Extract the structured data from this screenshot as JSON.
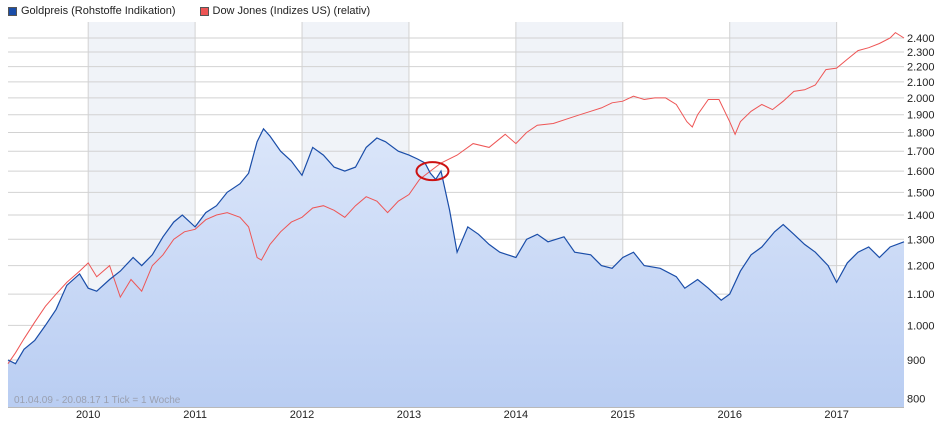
{
  "legend": {
    "series1_label": "Goldpreis (Rohstoffe Indikation)",
    "series2_label": "Dow Jones (Indizes US) (relativ)"
  },
  "footnote": "01.04.09 - 20.08.17   1 Tick = 1 Woche",
  "colors": {
    "gold": "#1a4da8",
    "gold_fill_top": "#b9cdf2",
    "gold_fill_bottom": "#dbe6fa",
    "dow": "#ee5555",
    "highlight": "#cc1111",
    "grid": "#d2d2d2",
    "band": "#f0f3f8"
  },
  "chart_data": {
    "type": "line",
    "title": "",
    "xlabel": "",
    "ylabel": "",
    "yscale": "log",
    "ylim": [
      780,
      2520
    ],
    "xlim": [
      2009.25,
      2017.63
    ],
    "y_ticks": [
      800,
      900,
      1000,
      1100,
      1200,
      1300,
      1400,
      1500,
      1600,
      1700,
      1800,
      1900,
      2000,
      2100,
      2200,
      2300,
      2400
    ],
    "y_tick_labels": [
      "800",
      "900",
      "1.000",
      "1.100",
      "1.200",
      "1.300",
      "1.400",
      "1.500",
      "1.600",
      "1.700",
      "1.800",
      "1.900",
      "2.000",
      "2.100",
      "2.200",
      "2.300",
      "2.400"
    ],
    "x_ticks": [
      2010,
      2011,
      2012,
      2013,
      2014,
      2015,
      2016,
      2017
    ],
    "x_tick_labels": [
      "2010",
      "2011",
      "2012",
      "2013",
      "2014",
      "2015",
      "2016",
      "2017"
    ],
    "grid": true,
    "legend_position": "top-left",
    "annotation": {
      "type": "ellipse",
      "x": 2013.22,
      "y": 1600
    },
    "series": [
      {
        "name": "Goldpreis (Rohstoffe Indikation)",
        "x": [
          2009.25,
          2009.32,
          2009.4,
          2009.5,
          2009.6,
          2009.7,
          2009.8,
          2009.92,
          2010.0,
          2010.08,
          2010.2,
          2010.3,
          2010.42,
          2010.5,
          2010.6,
          2010.7,
          2010.8,
          2010.88,
          2011.0,
          2011.1,
          2011.2,
          2011.3,
          2011.42,
          2011.5,
          2011.58,
          2011.64,
          2011.7,
          2011.8,
          2011.9,
          2012.0,
          2012.1,
          2012.2,
          2012.3,
          2012.4,
          2012.5,
          2012.6,
          2012.7,
          2012.78,
          2012.9,
          2013.0,
          2013.08,
          2013.15,
          2013.2,
          2013.25,
          2013.3,
          2013.38,
          2013.45,
          2013.55,
          2013.65,
          2013.75,
          2013.85,
          2014.0,
          2014.1,
          2014.2,
          2014.3,
          2014.45,
          2014.55,
          2014.7,
          2014.8,
          2014.9,
          2015.0,
          2015.1,
          2015.2,
          2015.35,
          2015.5,
          2015.58,
          2015.7,
          2015.8,
          2015.92,
          2016.0,
          2016.1,
          2016.2,
          2016.3,
          2016.42,
          2016.5,
          2016.6,
          2016.7,
          2016.8,
          2016.92,
          2017.0,
          2017.1,
          2017.2,
          2017.3,
          2017.4,
          2017.5,
          2017.63
        ],
        "y": [
          900,
          890,
          930,
          955,
          1000,
          1050,
          1130,
          1170,
          1120,
          1110,
          1150,
          1180,
          1230,
          1200,
          1240,
          1310,
          1370,
          1400,
          1350,
          1410,
          1440,
          1500,
          1540,
          1590,
          1750,
          1820,
          1780,
          1700,
          1650,
          1580,
          1720,
          1680,
          1620,
          1600,
          1620,
          1720,
          1770,
          1750,
          1700,
          1680,
          1660,
          1640,
          1590,
          1560,
          1600,
          1420,
          1250,
          1350,
          1320,
          1280,
          1250,
          1230,
          1300,
          1320,
          1290,
          1310,
          1250,
          1240,
          1200,
          1190,
          1230,
          1250,
          1200,
          1190,
          1160,
          1120,
          1150,
          1120,
          1080,
          1100,
          1180,
          1240,
          1270,
          1330,
          1360,
          1320,
          1280,
          1250,
          1200,
          1140,
          1210,
          1250,
          1270,
          1230,
          1270,
          1290
        ]
      },
      {
        "name": "Dow Jones (Indizes US) (relativ)",
        "x": [
          2009.25,
          2009.32,
          2009.4,
          2009.5,
          2009.6,
          2009.7,
          2009.8,
          2009.92,
          2010.0,
          2010.08,
          2010.2,
          2010.3,
          2010.4,
          2010.5,
          2010.6,
          2010.7,
          2010.8,
          2010.9,
          2011.0,
          2011.1,
          2011.2,
          2011.3,
          2011.42,
          2011.5,
          2011.58,
          2011.62,
          2011.7,
          2011.8,
          2011.9,
          2012.0,
          2012.1,
          2012.2,
          2012.3,
          2012.4,
          2012.5,
          2012.6,
          2012.7,
          2012.8,
          2012.9,
          2013.0,
          2013.1,
          2013.2,
          2013.3,
          2013.45,
          2013.6,
          2013.75,
          2013.9,
          2014.0,
          2014.1,
          2014.2,
          2014.35,
          2014.5,
          2014.6,
          2014.7,
          2014.8,
          2014.9,
          2015.0,
          2015.1,
          2015.2,
          2015.3,
          2015.4,
          2015.5,
          2015.6,
          2015.65,
          2015.7,
          2015.8,
          2015.9,
          2016.0,
          2016.05,
          2016.1,
          2016.2,
          2016.3,
          2016.4,
          2016.5,
          2016.6,
          2016.7,
          2016.8,
          2016.9,
          2017.0,
          2017.1,
          2017.2,
          2017.3,
          2017.4,
          2017.5,
          2017.55,
          2017.63
        ],
        "y": [
          890,
          920,
          960,
          1010,
          1060,
          1100,
          1140,
          1180,
          1210,
          1160,
          1200,
          1090,
          1150,
          1110,
          1200,
          1240,
          1300,
          1330,
          1340,
          1380,
          1400,
          1410,
          1390,
          1350,
          1230,
          1220,
          1280,
          1330,
          1370,
          1390,
          1430,
          1440,
          1420,
          1390,
          1440,
          1480,
          1460,
          1410,
          1460,
          1490,
          1560,
          1600,
          1640,
          1680,
          1740,
          1720,
          1790,
          1740,
          1800,
          1840,
          1850,
          1880,
          1900,
          1920,
          1940,
          1970,
          1980,
          2010,
          1990,
          2000,
          2000,
          1960,
          1860,
          1830,
          1900,
          1990,
          1990,
          1860,
          1790,
          1860,
          1920,
          1960,
          1930,
          1980,
          2040,
          2050,
          2080,
          2180,
          2190,
          2250,
          2310,
          2330,
          2360,
          2400,
          2440,
          2400
        ]
      }
    ]
  }
}
